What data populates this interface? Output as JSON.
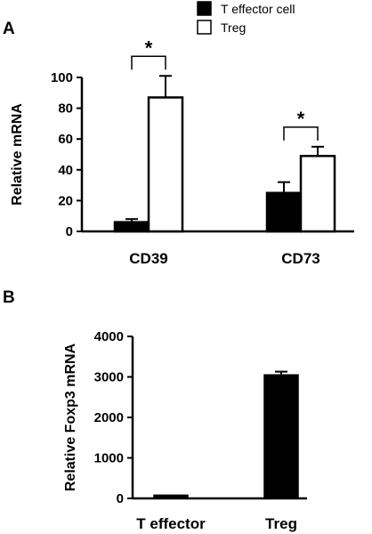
{
  "chart_data": [
    {
      "panel": "A",
      "type": "bar",
      "categories": [
        "CD39",
        "CD73"
      ],
      "ylabel": "Relative mRNA",
      "xlabel": "",
      "ylim": [
        0,
        100
      ],
      "yticks": [
        0,
        20,
        40,
        60,
        80,
        100
      ],
      "series": [
        {
          "name": "T effector cell",
          "color": "#000000",
          "values": [
            6,
            25
          ],
          "errors": [
            2,
            7
          ]
        },
        {
          "name": "Treg",
          "color": "#ffffff",
          "values": [
            87,
            49
          ],
          "errors": [
            14,
            6
          ]
        }
      ],
      "legend": "top-right",
      "significance": [
        "*",
        "*"
      ],
      "grid": false
    },
    {
      "panel": "B",
      "type": "bar",
      "categories": [
        "T effector",
        "Treg"
      ],
      "values": [
        80,
        3050
      ],
      "errors": [
        0,
        80
      ],
      "color": "#000000",
      "ylabel": "Relative Foxp3 mRNA",
      "xlabel": "",
      "ylim": [
        0,
        4000
      ],
      "yticks": [
        0,
        1000,
        2000,
        3000,
        4000
      ],
      "grid": false
    }
  ]
}
